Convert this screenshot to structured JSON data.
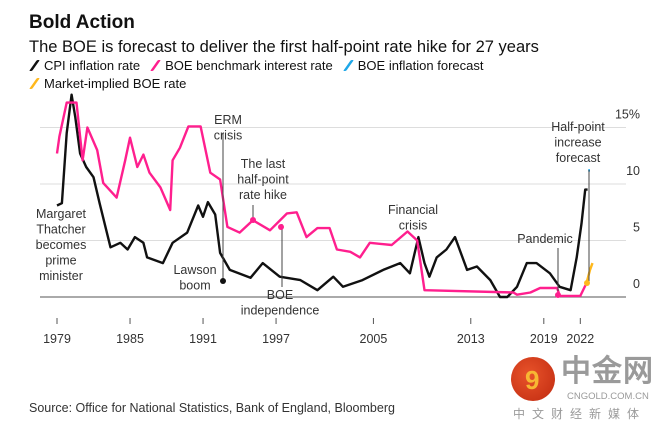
{
  "chart_data": {
    "type": "line",
    "title": "Bold Action",
    "subtitle": "The BOE is forecast to deliver the first half-point rate hike for 27 years",
    "xlabel": "",
    "ylabel": "",
    "xlim": [
      1978,
      2024
    ],
    "ylim": [
      0,
      15
    ],
    "y_ticks": [
      {
        "value": 0,
        "label": "0"
      },
      {
        "value": 5,
        "label": "5"
      },
      {
        "value": 10,
        "label": "10"
      },
      {
        "value": 15,
        "label": "15%"
      }
    ],
    "x_ticks": [
      {
        "value": 1979,
        "label": "1979"
      },
      {
        "value": 1985,
        "label": "1985"
      },
      {
        "value": 1991,
        "label": "1991"
      },
      {
        "value": 1997,
        "label": "1997"
      },
      {
        "value": 2005,
        "label": "2005"
      },
      {
        "value": 2013,
        "label": "2013"
      },
      {
        "value": 2019,
        "label": "2019"
      },
      {
        "value": 2022,
        "label": "2022"
      }
    ],
    "grid": true,
    "legend_placement": "top",
    "series": [
      {
        "name": "CPI inflation rate",
        "color": "#111111",
        "points": [
          [
            1979.0,
            8.1
          ],
          [
            1979.4,
            8.3
          ],
          [
            1979.8,
            14.5
          ],
          [
            1980.2,
            17.9
          ],
          [
            1980.5,
            15.9
          ],
          [
            1980.9,
            12.7
          ],
          [
            1981.4,
            11.5
          ],
          [
            1982.0,
            10.6
          ],
          [
            1982.5,
            8.3
          ],
          [
            1983.4,
            4.4
          ],
          [
            1984.2,
            4.8
          ],
          [
            1984.8,
            4.2
          ],
          [
            1985.4,
            5.3
          ],
          [
            1986.1,
            4.8
          ],
          [
            1986.4,
            3.5
          ],
          [
            1987.7,
            3.0
          ],
          [
            1988.5,
            4.8
          ],
          [
            1989.7,
            5.7
          ],
          [
            1990.6,
            8.1
          ],
          [
            1991.0,
            7.1
          ],
          [
            1991.4,
            8.4
          ],
          [
            1992.0,
            7.3
          ],
          [
            1992.4,
            3.9
          ],
          [
            1993.2,
            2.4
          ],
          [
            1994.9,
            1.7
          ],
          [
            1995.9,
            3.0
          ],
          [
            1997.3,
            1.8
          ],
          [
            1999.0,
            1.5
          ],
          [
            2000.4,
            0.6
          ],
          [
            2001.7,
            1.8
          ],
          [
            2002.5,
            0.9
          ],
          [
            2004.1,
            1.5
          ],
          [
            2005.8,
            2.4
          ],
          [
            2007.2,
            3.0
          ],
          [
            2008.0,
            2.1
          ],
          [
            2008.7,
            5.3
          ],
          [
            2009.2,
            3.0
          ],
          [
            2009.6,
            1.8
          ],
          [
            2010.2,
            3.5
          ],
          [
            2011.0,
            4.2
          ],
          [
            2011.7,
            5.3
          ],
          [
            2012.7,
            2.4
          ],
          [
            2013.5,
            2.7
          ],
          [
            2014.6,
            1.5
          ],
          [
            2015.4,
            0
          ],
          [
            2016.0,
            0
          ],
          [
            2016.8,
            0.9
          ],
          [
            2017.6,
            3.0
          ],
          [
            2018.4,
            3.0
          ],
          [
            2019.5,
            2.1
          ],
          [
            2020.3,
            0.9
          ],
          [
            2021.2,
            0.6
          ],
          [
            2021.7,
            3.5
          ],
          [
            2022.1,
            6.5
          ],
          [
            2022.4,
            9.5
          ],
          [
            2022.6,
            9.5
          ]
        ]
      },
      {
        "name": "BOE benchmark interest rate",
        "color": "#ff1f8e",
        "points": [
          [
            1979.0,
            12.7
          ],
          [
            1979.2,
            14.2
          ],
          [
            1979.8,
            17.2
          ],
          [
            1980.6,
            17.2
          ],
          [
            1981.1,
            12.1
          ],
          [
            1981.5,
            15.0
          ],
          [
            1982.3,
            13.0
          ],
          [
            1982.8,
            10.1
          ],
          [
            1983.9,
            8.8
          ],
          [
            1984.6,
            12.1
          ],
          [
            1985.0,
            14.1
          ],
          [
            1985.6,
            11.5
          ],
          [
            1986.1,
            12.6
          ],
          [
            1986.6,
            11.0
          ],
          [
            1987.5,
            9.7
          ],
          [
            1988.3,
            7.7
          ],
          [
            1988.5,
            12.1
          ],
          [
            1989.1,
            13.2
          ],
          [
            1989.8,
            15.1
          ],
          [
            1990.8,
            15.1
          ],
          [
            1991.6,
            11.0
          ],
          [
            1992.4,
            10.4
          ],
          [
            1993.0,
            6.2
          ],
          [
            1994.0,
            5.7
          ],
          [
            1995.1,
            6.8
          ],
          [
            1996.5,
            5.9
          ],
          [
            1997.9,
            7.4
          ],
          [
            1998.7,
            7.5
          ],
          [
            1999.5,
            5.3
          ],
          [
            2000.4,
            6.1
          ],
          [
            2001.4,
            6.1
          ],
          [
            2002.0,
            4.2
          ],
          [
            2003.1,
            4.0
          ],
          [
            2003.9,
            3.5
          ],
          [
            2004.7,
            4.8
          ],
          [
            2006.5,
            4.6
          ],
          [
            2007.8,
            5.8
          ],
          [
            2008.6,
            5.0
          ],
          [
            2009.2,
            0.6
          ],
          [
            2016.5,
            0.4
          ],
          [
            2016.8,
            0.2
          ],
          [
            2017.9,
            0.4
          ],
          [
            2018.7,
            0.8
          ],
          [
            2020.1,
            0.8
          ],
          [
            2020.3,
            0.1
          ],
          [
            2022.0,
            0.1
          ],
          [
            2022.5,
            1.2
          ]
        ]
      },
      {
        "name": "BOE inflation forecast",
        "color": "#1ea7e8",
        "points": [
          [
            2022.65,
            11.2
          ],
          [
            2022.8,
            11.2
          ]
        ]
      },
      {
        "name": "Market-implied BOE rate",
        "color": "#ffb81c",
        "points": [
          [
            2022.5,
            1.2
          ],
          [
            2022.8,
            2.4
          ],
          [
            2023.0,
            3.0
          ]
        ]
      }
    ],
    "annotations": [
      "ERM crisis",
      "The last half-point rate hike",
      "Margaret Thatcher becomes prime minister",
      "Lawson boom",
      "BOE independence",
      "Financial crisis",
      "Pandemic",
      "Half-point increase forecast"
    ]
  },
  "header": {
    "title": "Bold Action",
    "subtitle": "The BOE is forecast to deliver the first half-point rate hike for 27 years"
  },
  "legend": [
    "CPI inflation rate",
    "BOE benchmark interest rate",
    "BOE inflation forecast",
    "Market-implied BOE rate"
  ],
  "annotations": {
    "erm": [
      "ERM",
      "crisis"
    ],
    "last_hike": [
      "The last",
      "half-point",
      "rate hike"
    ],
    "thatcher": [
      "Margaret",
      "Thatcher",
      "becomes",
      "prime",
      "minister"
    ],
    "lawson": [
      "Lawson",
      "boom"
    ],
    "boe_ind": [
      "BOE",
      "independence"
    ],
    "fin": [
      "Financial",
      "crisis"
    ],
    "pandemic": [
      "Pandemic"
    ],
    "half_point": [
      "Half-point",
      "increase",
      "forecast"
    ]
  },
  "source": "Source: Office for National Statistics, Bank of England, Bloomberg",
  "watermark": {
    "cn": "中金网",
    "en": "CNGOLD.COM.CN",
    "sub": "中文财经新媒体",
    "glyph": "9"
  }
}
